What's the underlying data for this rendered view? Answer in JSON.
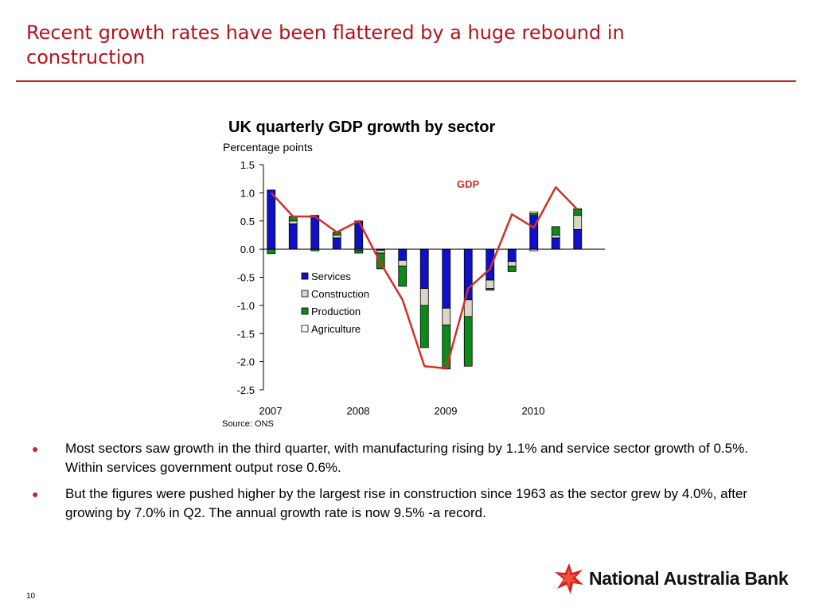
{
  "slide": {
    "title": "Recent growth rates have been flattered by a huge rebound in construction",
    "page_number": "10",
    "source": "Source: ONS",
    "bullets": [
      "Most sectors saw growth in the third quarter, with manufacturing rising by 1.1% and service sector growth of 0.5%. Within services government output rose 0.6%.",
      "But the figures were pushed higher by the largest rise in construction since 1963 as the sector grew by 4.0%, after growing by 7.0% in Q2. The annual growth rate is now 9.5% -a record."
    ],
    "bullet_glyph": "●",
    "logo_text": "National Australia Bank",
    "colors": {
      "title": "#b4121b",
      "rule": "#c0282d",
      "bullet": "#c0282d"
    }
  },
  "chart_data": {
    "type": "bar",
    "stacked": true,
    "title": "UK quarterly GDP growth by sector",
    "ylabel": "Percentage points",
    "ylim": [
      -2.5,
      1.5
    ],
    "yticks": [
      "1.5",
      "1.0",
      "0.5",
      "0.0",
      "-0.5",
      "-1.0",
      "-1.5",
      "-2.0",
      "-2.5"
    ],
    "ytick_values": [
      1.5,
      1.0,
      0.5,
      0.0,
      -0.5,
      -1.0,
      -1.5,
      -2.0,
      -2.5
    ],
    "x": [
      "2007 Q1",
      "2007 Q2",
      "2007 Q3",
      "2007 Q4",
      "2008 Q1",
      "2008 Q2",
      "2008 Q3",
      "2008 Q4",
      "2009 Q1",
      "2009 Q2",
      "2009 Q3",
      "2009 Q4",
      "2010 Q1",
      "2010 Q2",
      "2010 Q3"
    ],
    "x_tick_labels": [
      "2007",
      "2008",
      "2009",
      "2010"
    ],
    "x_tick_positions": [
      0,
      4,
      8,
      12
    ],
    "legend_position": "center-left",
    "series": [
      {
        "name": "Services",
        "color": "#1010c8",
        "values": [
          1.05,
          0.45,
          0.6,
          0.2,
          0.5,
          -0.02,
          -0.2,
          -0.7,
          -1.05,
          -0.9,
          -0.55,
          -0.22,
          0.6,
          0.2,
          0.35
        ]
      },
      {
        "name": "Construction",
        "color": "#d9d6c8",
        "values": [
          0.0,
          0.05,
          0.0,
          0.05,
          -0.02,
          -0.05,
          -0.1,
          -0.3,
          -0.3,
          -0.3,
          -0.15,
          -0.08,
          -0.03,
          0.05,
          0.25
        ]
      },
      {
        "name": "Production",
        "color": "#0d8a1a",
        "values": [
          -0.08,
          0.08,
          -0.03,
          0.05,
          -0.05,
          -0.28,
          -0.36,
          -0.75,
          -0.78,
          -0.88,
          -0.03,
          -0.1,
          0.03,
          0.15,
          0.1
        ]
      },
      {
        "name": "Agriculture",
        "color": "#ffffff",
        "values": [
          0.0,
          0.0,
          0.0,
          0.0,
          0.0,
          0.0,
          0.0,
          0.0,
          0.0,
          0.0,
          0.0,
          0.0,
          0.03,
          0.0,
          0.02
        ]
      }
    ],
    "line": {
      "name": "GDP",
      "color": "#d03028",
      "values": [
        1.0,
        0.58,
        0.58,
        0.3,
        0.5,
        -0.25,
        -0.9,
        -2.08,
        -2.12,
        -0.7,
        -0.35,
        0.62,
        0.38,
        1.1,
        0.7
      ]
    }
  }
}
